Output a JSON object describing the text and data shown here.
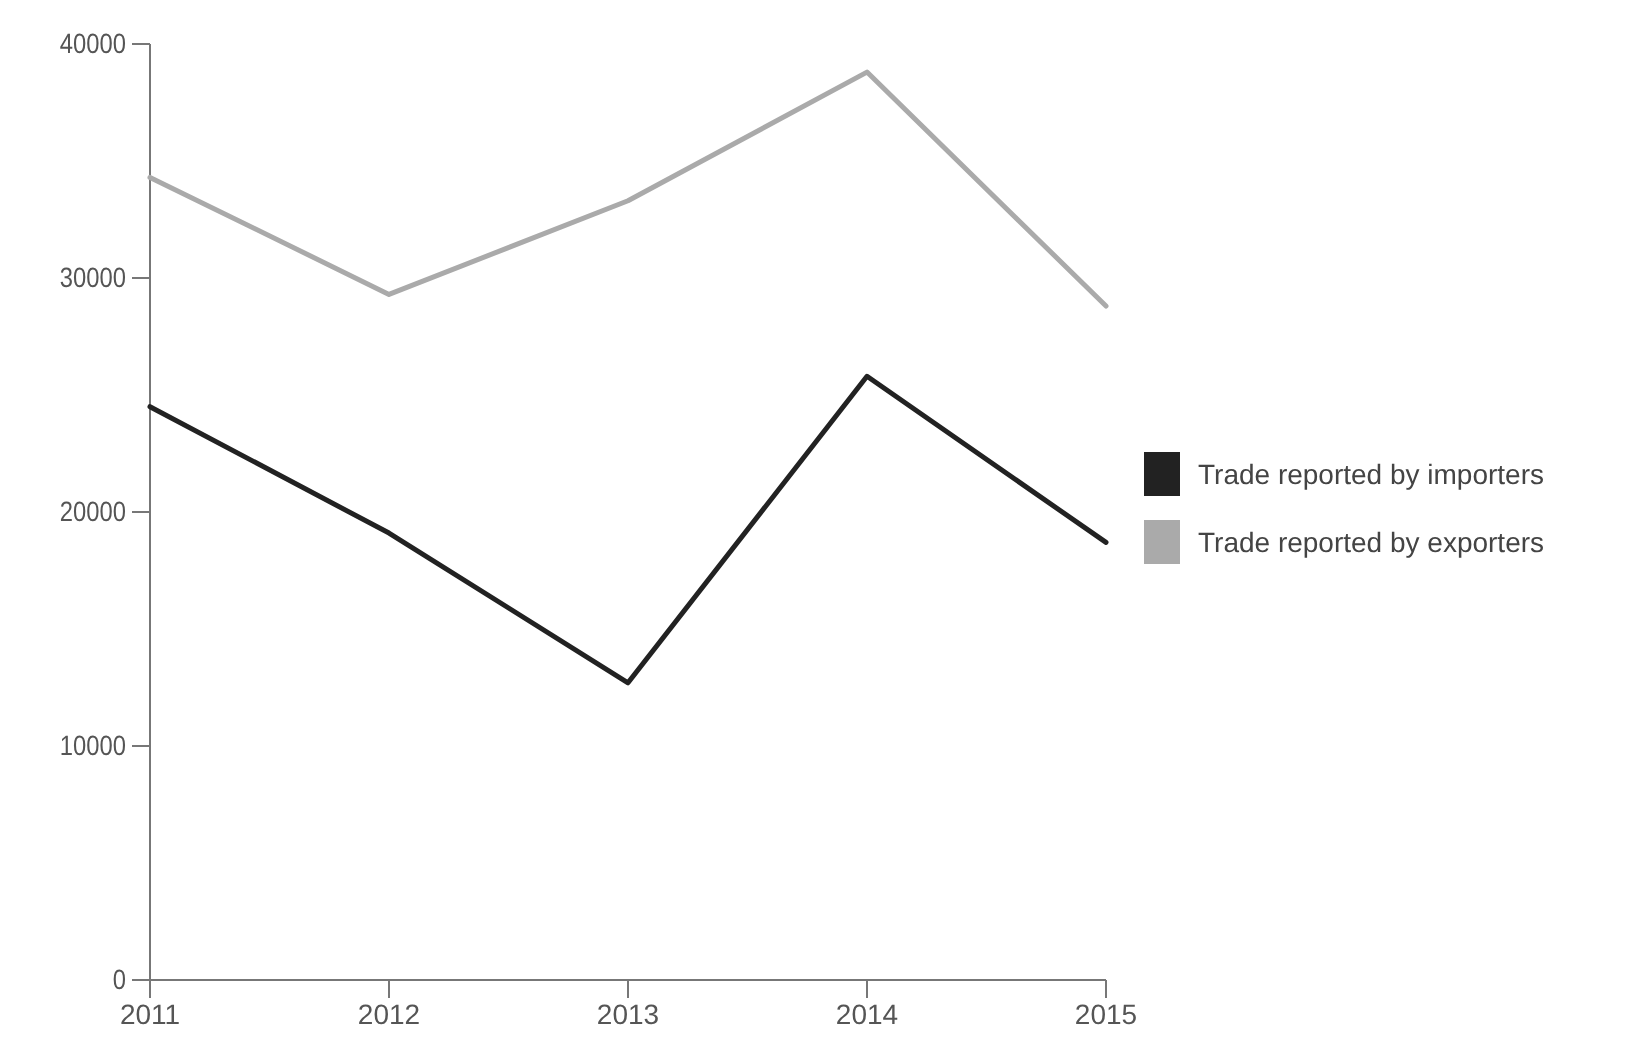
{
  "chart_data": {
    "type": "line",
    "x": [
      2011,
      2012,
      2013,
      2014,
      2015
    ],
    "series": [
      {
        "name": "Trade reported by importers",
        "color": "#222222",
        "values": [
          24500,
          19100,
          12700,
          25800,
          18700
        ]
      },
      {
        "name": "Trade reported by exporters",
        "color": "#aaaaaa",
        "values": [
          34300,
          29300,
          33300,
          38800,
          28800
        ]
      }
    ],
    "xlim": [
      2011,
      2015
    ],
    "xticks": [
      2011,
      2012,
      2013,
      2014,
      2015
    ],
    "ylim": [
      0,
      40000
    ],
    "yticks": [
      0,
      10000,
      20000,
      30000,
      40000
    ],
    "grid": false,
    "legend": "right",
    "marker": "none",
    "line_style": "solid"
  }
}
